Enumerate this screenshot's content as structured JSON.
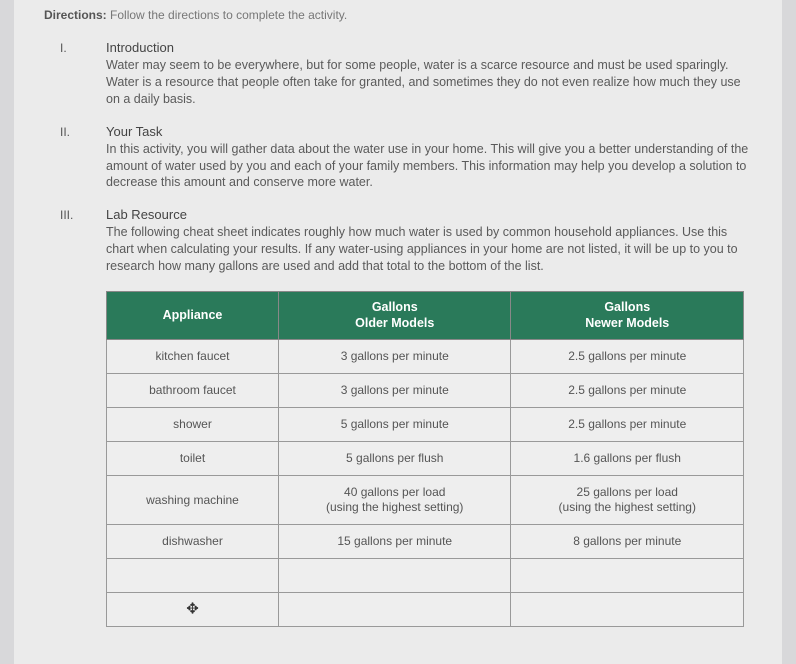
{
  "directions": {
    "label": "Directions:",
    "text": "Follow the directions to complete the activity."
  },
  "sections": {
    "intro": {
      "num": "I.",
      "title": "Introduction",
      "text": "Water may seem to be everywhere, but for some people, water is a scarce resource and must be used sparingly. Water is a resource that people often take for granted, and sometimes they do not even realize how much they use on a daily basis."
    },
    "task": {
      "num": "II.",
      "title": "Your Task",
      "text": "In this activity, you will gather data about the water use in your home. This will give you a better understanding of the amount of water used by you and each of your family members. This information may help you develop a solution to decrease this amount and conserve more water."
    },
    "resource": {
      "num": "III.",
      "title": "Lab Resource",
      "text": "The following cheat sheet indicates roughly how much water is used by common household appliances. Use this chart when calculating your results. If any water-using appliances in your home are not listed, it will be up to you to research how many gallons are used and add that total to the bottom of the list."
    }
  },
  "table": {
    "header_bg": "#2a7a5a",
    "header_fg": "#ffffff",
    "col1": "Appliance",
    "col2_l1": "Gallons",
    "col2_l2": "Older Models",
    "col3_l1": "Gallons",
    "col3_l2": "Newer Models",
    "rows": [
      {
        "a": "kitchen faucet",
        "o": "3 gallons per minute",
        "n": "2.5 gallons per minute"
      },
      {
        "a": "bathroom faucet",
        "o": "3 gallons per minute",
        "n": "2.5 gallons per minute"
      },
      {
        "a": "shower",
        "o": "5 gallons per minute",
        "n": "2.5 gallons per minute"
      },
      {
        "a": "toilet",
        "o": "5 gallons per flush",
        "n": "1.6 gallons per flush"
      },
      {
        "a": "washing machine",
        "o": "40 gallons per load\n(using the highest setting)",
        "n": "25 gallons per load\n(using the highest setting)"
      },
      {
        "a": "dishwasher",
        "o": "15 gallons per minute",
        "n": "8 gallons per minute"
      }
    ]
  }
}
